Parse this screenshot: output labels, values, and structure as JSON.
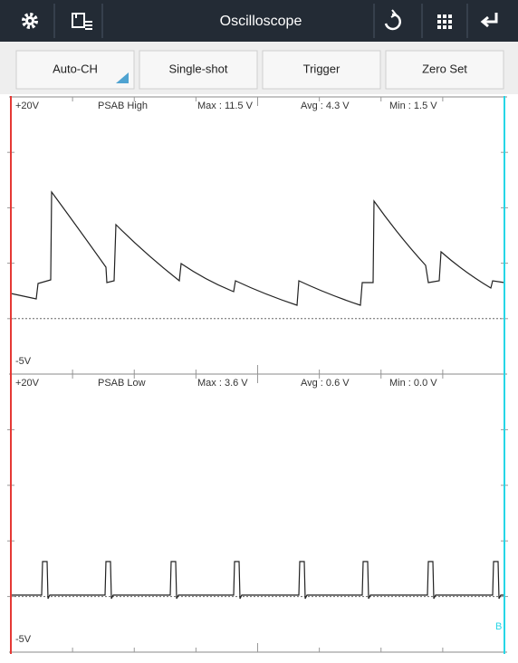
{
  "toolbar": {
    "title": "Oscilloscope"
  },
  "buttons": [
    "Auto-CH",
    "Single-shot",
    "Trigger",
    "Zero Set"
  ],
  "channels": [
    {
      "top_label": "+20V",
      "name": "PSAB High",
      "max": "Max : 11.5 V",
      "avg": "Avg : 4.3 V",
      "min": "Min : 1.5 V",
      "bottom_label": "-5V"
    },
    {
      "top_label": "+20V",
      "name": "PSAB Low",
      "max": "Max : 3.6 V",
      "avg": "Avg : 0.6 V",
      "min": "Min : 0.0 V",
      "bottom_label": "-5V",
      "marker": "B"
    }
  ]
}
